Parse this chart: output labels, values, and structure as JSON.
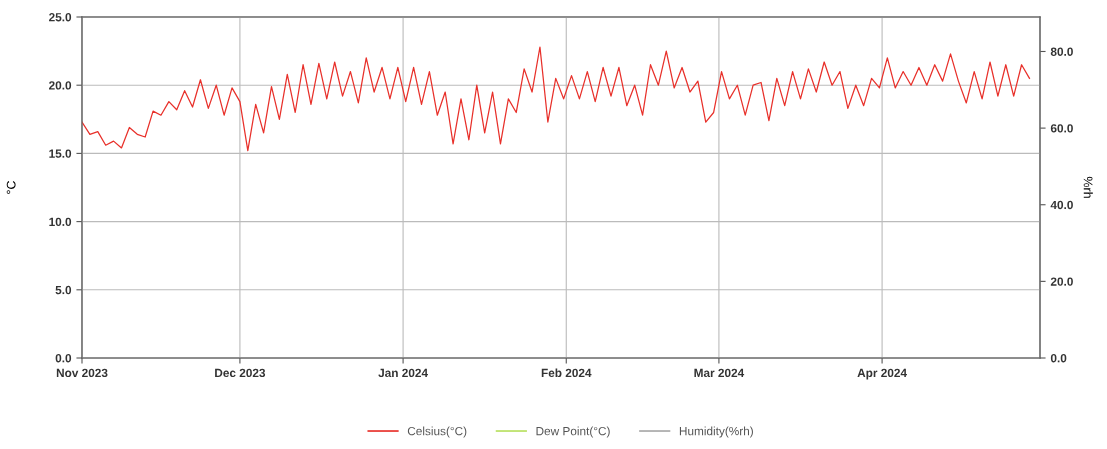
{
  "chart_data": {
    "type": "line",
    "ylabel": "°C",
    "y2label": "%rh",
    "legend": "bottom",
    "grid": true,
    "marker": "none",
    "line_style": "solid",
    "xlim": [
      "2023-11-01",
      "2024-05-01"
    ],
    "xticks": [
      {
        "value": "2023-11-01",
        "label": "Nov 2023"
      },
      {
        "value": "2023-12-01",
        "label": "Dec 2023"
      },
      {
        "value": "2024-01-01",
        "label": "Jan 2024"
      },
      {
        "value": "2024-02-01",
        "label": "Feb 2024"
      },
      {
        "value": "2024-03-01",
        "label": "Mar 2024"
      },
      {
        "value": "2024-04-01",
        "label": "Apr 2024"
      }
    ],
    "ylim": [
      0,
      25
    ],
    "yticks": [
      {
        "value": 0,
        "label": "0.0"
      },
      {
        "value": 5,
        "label": "5.0"
      },
      {
        "value": 10,
        "label": "10.0"
      },
      {
        "value": 15,
        "label": "15.0"
      },
      {
        "value": 20,
        "label": "20.0"
      },
      {
        "value": 25,
        "label": "25.0"
      }
    ],
    "y2lim": [
      0,
      89
    ],
    "y2ticks": [
      {
        "value": 0,
        "label": "0.0"
      },
      {
        "value": 20,
        "label": "20.0"
      },
      {
        "value": 40,
        "label": "40.0"
      },
      {
        "value": 60,
        "label": "60.0"
      },
      {
        "value": 80,
        "label": "80.0"
      }
    ],
    "x": [
      "2023-11-01T00:00",
      "2023-11-02T12:00",
      "2023-11-04T00:00",
      "2023-11-05T12:00",
      "2023-11-07T00:00",
      "2023-11-08T12:00",
      "2023-11-10T00:00",
      "2023-11-11T12:00",
      "2023-11-13T00:00",
      "2023-11-14T12:00",
      "2023-11-16T00:00",
      "2023-11-17T12:00",
      "2023-11-19T00:00",
      "2023-11-20T12:00",
      "2023-11-22T00:00",
      "2023-11-23T12:00",
      "2023-11-25T00:00",
      "2023-11-26T12:00",
      "2023-11-28T00:00",
      "2023-11-29T12:00",
      "2023-12-01T00:00",
      "2023-12-02T12:00",
      "2023-12-04T00:00",
      "2023-12-05T12:00",
      "2023-12-07T00:00",
      "2023-12-08T12:00",
      "2023-12-10T00:00",
      "2023-12-11T12:00",
      "2023-12-13T00:00",
      "2023-12-14T12:00",
      "2023-12-16T00:00",
      "2023-12-17T12:00",
      "2023-12-19T00:00",
      "2023-12-20T12:00",
      "2023-12-22T00:00",
      "2023-12-23T12:00",
      "2023-12-25T00:00",
      "2023-12-26T12:00",
      "2023-12-28T00:00",
      "2023-12-29T12:00",
      "2023-12-31T00:00",
      "2024-01-01T12:00",
      "2024-01-03T00:00",
      "2024-01-04T12:00",
      "2024-01-06T00:00",
      "2024-01-07T12:00",
      "2024-01-09T00:00",
      "2024-01-10T12:00",
      "2024-01-12T00:00",
      "2024-01-13T12:00",
      "2024-01-15T00:00",
      "2024-01-16T12:00",
      "2024-01-18T00:00",
      "2024-01-19T12:00",
      "2024-01-21T00:00",
      "2024-01-22T12:00",
      "2024-01-24T00:00",
      "2024-01-25T12:00",
      "2024-01-27T00:00",
      "2024-01-28T12:00",
      "2024-01-30T00:00",
      "2024-01-31T12:00",
      "2024-02-02T00:00",
      "2024-02-03T12:00",
      "2024-02-05T00:00",
      "2024-02-06T12:00",
      "2024-02-08T00:00",
      "2024-02-09T12:00",
      "2024-02-11T00:00",
      "2024-02-12T12:00",
      "2024-02-14T00:00",
      "2024-02-15T12:00",
      "2024-02-17T00:00",
      "2024-02-18T12:00",
      "2024-02-20T00:00",
      "2024-02-21T12:00",
      "2024-02-23T00:00",
      "2024-02-24T12:00",
      "2024-02-26T00:00",
      "2024-02-27T12:00",
      "2024-02-29T00:00",
      "2024-03-01T12:00",
      "2024-03-03T00:00",
      "2024-03-04T12:00",
      "2024-03-06T00:00",
      "2024-03-07T12:00",
      "2024-03-09T00:00",
      "2024-03-10T12:00",
      "2024-03-12T00:00",
      "2024-03-13T12:00",
      "2024-03-15T00:00",
      "2024-03-16T12:00",
      "2024-03-18T00:00",
      "2024-03-19T12:00",
      "2024-03-21T00:00",
      "2024-03-22T12:00",
      "2024-03-24T00:00",
      "2024-03-25T12:00",
      "2024-03-27T00:00",
      "2024-03-28T12:00",
      "2024-03-30T00:00",
      "2024-03-31T12:00",
      "2024-04-02T00:00",
      "2024-04-03T12:00",
      "2024-04-05T00:00",
      "2024-04-06T12:00",
      "2024-04-08T00:00",
      "2024-04-09T12:00",
      "2024-04-11T00:00",
      "2024-04-12T12:00",
      "2024-04-14T00:00",
      "2024-04-15T12:00",
      "2024-04-17T00:00",
      "2024-04-18T12:00",
      "2024-04-20T00:00",
      "2024-04-21T12:00",
      "2024-04-23T00:00",
      "2024-04-24T12:00",
      "2024-04-26T00:00",
      "2024-04-27T12:00",
      "2024-04-29T00:00"
    ],
    "series": [
      {
        "name": "Celsius(°C)",
        "color": "#e8302a",
        "values": [
          17.3,
          16.4,
          16.6,
          15.6,
          15.9,
          15.4,
          16.9,
          16.4,
          16.2,
          18.1,
          17.8,
          18.8,
          18.2,
          19.6,
          18.4,
          20.4,
          18.3,
          20.0,
          17.8,
          19.8,
          18.8,
          15.2,
          18.6,
          16.5,
          19.9,
          17.5,
          20.8,
          18.0,
          21.5,
          18.6,
          21.6,
          19.0,
          21.7,
          19.2,
          21.0,
          18.7,
          22.0,
          19.5,
          21.3,
          19.0,
          21.3,
          18.8,
          21.3,
          18.6,
          21.0,
          17.8,
          19.5,
          15.7,
          19.0,
          16.0,
          20.0,
          16.5,
          19.5,
          15.7,
          19.0,
          18.0,
          21.2,
          19.5,
          22.8,
          17.3,
          20.5,
          19.0,
          20.7,
          19.0,
          21.0,
          18.8,
          21.3,
          19.2,
          21.3,
          18.5,
          20.0,
          17.8,
          21.5,
          20.0,
          22.5,
          19.8,
          21.3,
          19.5,
          20.3,
          17.3,
          18.0,
          21.0,
          19.0,
          20.0,
          17.8,
          20.0,
          20.2,
          17.4,
          20.5,
          18.5,
          21.0,
          19.0,
          21.2,
          19.5,
          21.7,
          20.0,
          21.0,
          18.3,
          20.0,
          18.5,
          20.5,
          19.8,
          22.0,
          19.8,
          21.0,
          20.0,
          21.3,
          20.0,
          21.5,
          20.3,
          22.3,
          20.3,
          18.7,
          21.0,
          19.0,
          21.7,
          19.2,
          21.5,
          19.2,
          21.5,
          20.5
        ]
      },
      {
        "name": "Dew Point(°C)",
        "color": "#b8e060",
        "values": [
          null,
          null,
          null,
          null,
          null,
          null,
          null,
          null,
          null,
          null,
          null,
          null,
          null,
          null,
          null,
          null,
          null,
          null,
          null,
          null,
          null,
          null,
          null,
          null,
          null,
          null,
          null,
          null,
          null,
          null,
          null,
          null,
          null,
          null,
          null,
          null,
          null,
          null,
          null,
          null,
          null,
          null,
          null,
          null,
          null,
          null,
          null,
          null,
          null,
          null,
          null,
          null,
          null,
          null,
          null,
          null,
          null,
          null,
          null,
          null,
          null,
          null,
          null,
          null,
          null,
          null,
          null,
          null,
          null,
          null,
          null,
          null,
          null,
          null,
          null,
          null,
          null,
          null,
          null,
          null,
          null,
          null,
          null,
          null,
          null,
          null,
          null,
          null,
          null,
          null,
          null,
          null,
          null,
          null,
          null,
          null,
          null,
          null,
          null,
          null,
          null,
          null,
          null,
          null,
          null,
          null,
          null,
          null,
          null,
          null,
          null,
          null,
          null,
          null,
          null,
          null,
          null,
          null,
          null,
          null,
          null
        ]
      },
      {
        "name": "Humidity(%rh)",
        "color": "#a8a8a8",
        "values": [
          null,
          null,
          null,
          null,
          null,
          null,
          null,
          null,
          null,
          null,
          null,
          null,
          null,
          null,
          null,
          null,
          null,
          null,
          null,
          null,
          null,
          null,
          null,
          null,
          null,
          null,
          null,
          null,
          null,
          null,
          null,
          null,
          null,
          null,
          null,
          null,
          null,
          null,
          null,
          null,
          null,
          null,
          null,
          null,
          null,
          null,
          null,
          null,
          null,
          null,
          null,
          null,
          null,
          null,
          null,
          null,
          null,
          null,
          null,
          null,
          null,
          null,
          null,
          null,
          null,
          null,
          null,
          null,
          null,
          null,
          null,
          null,
          null,
          null,
          null,
          null,
          null,
          null,
          null,
          null,
          null,
          null,
          null,
          null,
          null,
          null,
          null,
          null,
          null,
          null,
          null,
          null,
          null,
          null,
          null,
          null,
          null,
          null,
          null,
          null,
          null,
          null,
          null,
          null,
          null,
          null,
          null,
          null,
          null,
          null,
          null,
          null,
          null,
          null,
          null,
          null,
          null,
          null,
          null,
          null,
          null
        ]
      }
    ]
  }
}
